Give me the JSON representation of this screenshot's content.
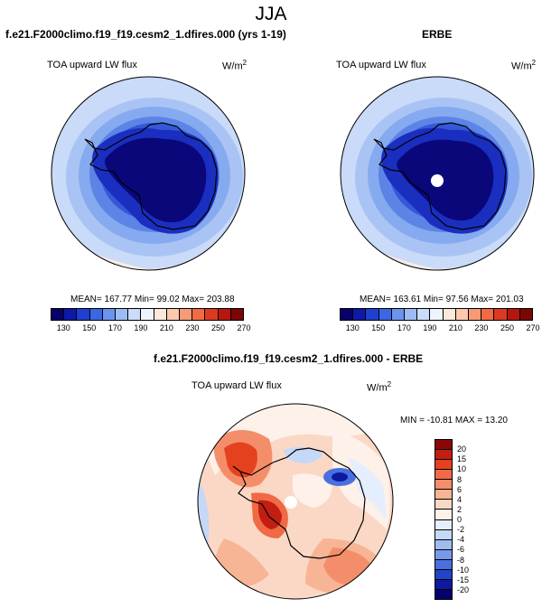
{
  "main_title": "JJA",
  "panels": {
    "model": {
      "title": "f.e21.F2000climo.f19_f19.cesm2_1.dfires.000 (yrs 1-19)",
      "variable": "TOA upward LW flux",
      "units_base": "W/m",
      "units_exp": "2",
      "stats": "MEAN= 167.77  Min=  99.02  Max= 203.88"
    },
    "obs": {
      "title": "ERBE",
      "variable": "TOA upward LW flux",
      "units_base": "W/m",
      "units_exp": "2",
      "stats": "MEAN= 163.61  Min=  97.56  Max= 201.03"
    },
    "diff": {
      "title": "f.e21.F2000climo.f19_f19.cesm2_1.dfires.000 - ERBE",
      "variable": "TOA upward LW flux",
      "units_base": "W/m",
      "units_exp": "2",
      "stats": "MIN = -10.81 MAX =  13.20"
    }
  },
  "colorbar_abs": {
    "labels": [
      "130",
      "150",
      "170",
      "190",
      "210",
      "230",
      "250",
      "270"
    ],
    "colors": [
      "#08006b",
      "#0d1aa8",
      "#1f3fd1",
      "#3a67e3",
      "#6a95ee",
      "#9dbcf4",
      "#cadcf8",
      "#eef4fd",
      "#fde8dc",
      "#fbc9ad",
      "#f79a76",
      "#f06a45",
      "#dc3a20",
      "#b5170f",
      "#7c0606"
    ]
  },
  "colorbar_diff": {
    "labels": [
      "20",
      "15",
      "10",
      "8",
      "6",
      "4",
      "2",
      "0",
      "-2",
      "-4",
      "-6",
      "-8",
      "-10",
      "-15",
      "-20"
    ],
    "colors": [
      "#8a0707",
      "#c21e12",
      "#e4421f",
      "#f06a45",
      "#f48e6a",
      "#f8b595",
      "#fbd8c6",
      "#fdf1ea",
      "#e4eefc",
      "#c5d8f6",
      "#9fbcf1",
      "#7699ea",
      "#4a70e0",
      "#2344c9",
      "#0d1aa0",
      "#06006a"
    ]
  }
}
